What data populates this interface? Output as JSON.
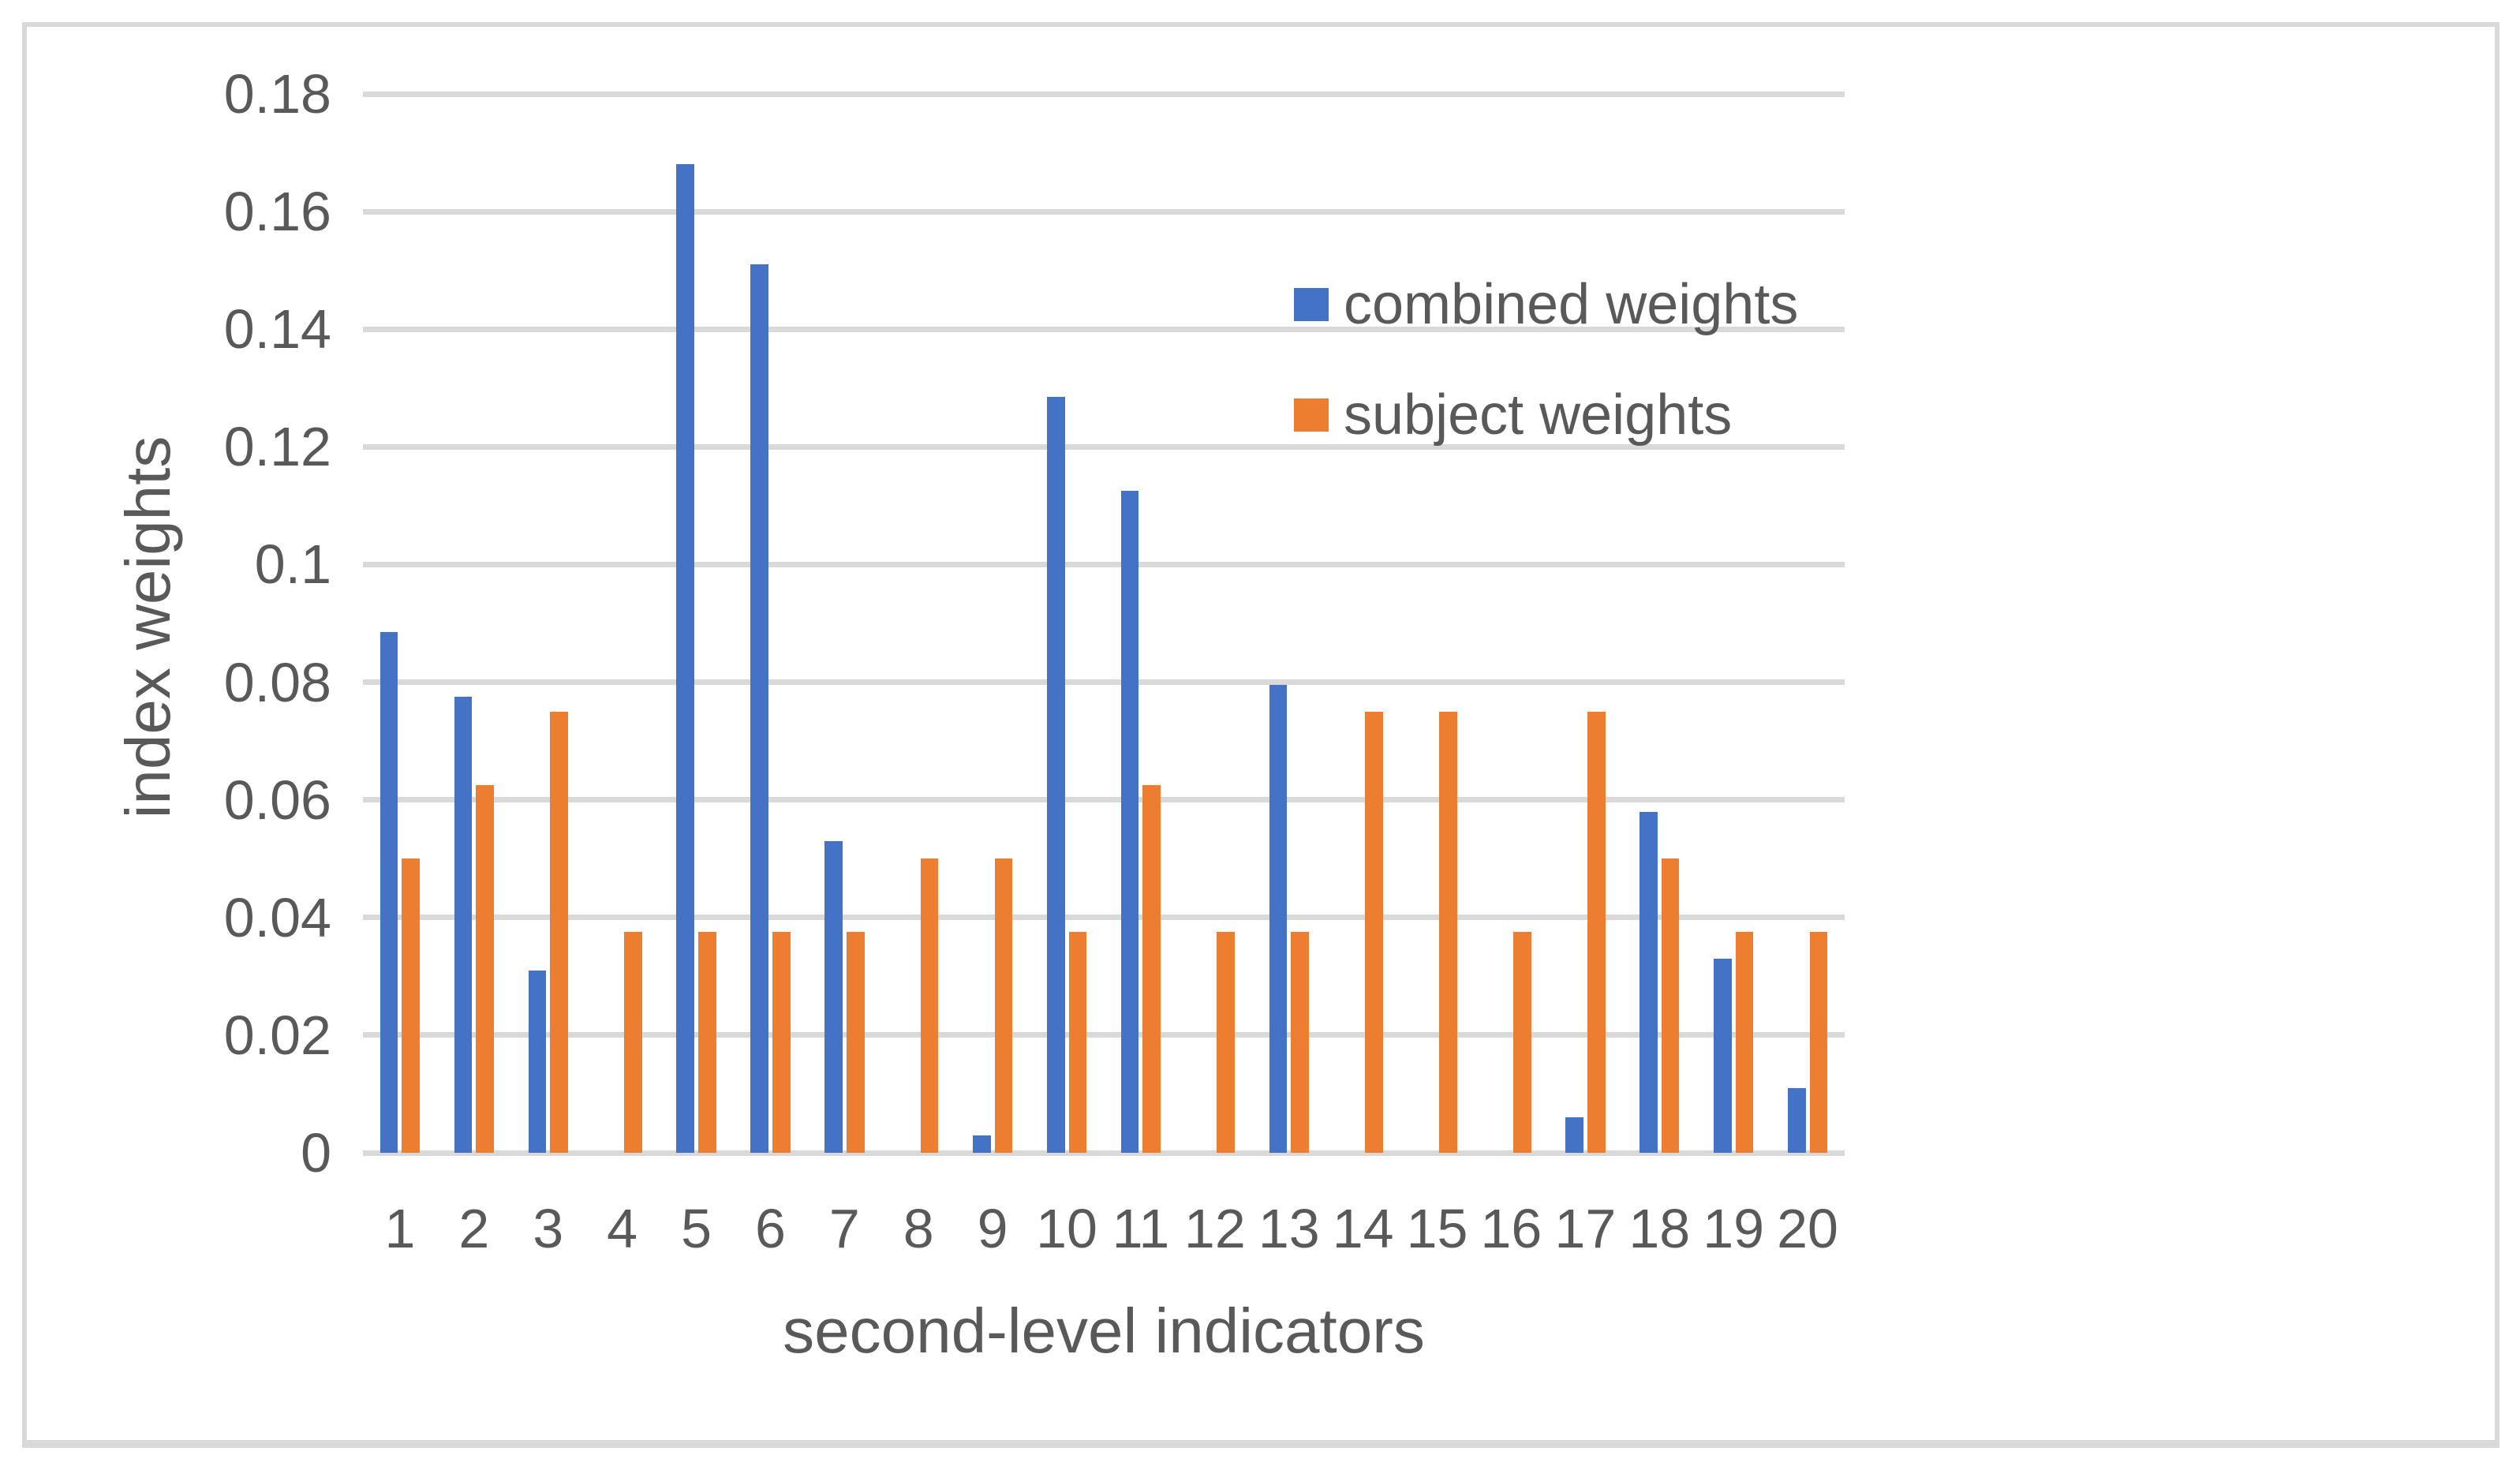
{
  "figure": {
    "y_axis_title": "index weights",
    "x_axis_title": "second-level indicators",
    "legend": {
      "combined_label": "combined weights",
      "subject_label": "subject weights"
    },
    "colors": {
      "combined": "#4472C4",
      "subject": "#ED7D31",
      "gridline": "#D9D9D9",
      "frame_border": "#D9D9D9",
      "text": "#595959",
      "background": "#FFFFFF"
    },
    "y_ticks": [
      {
        "label": "0",
        "value": 0
      },
      {
        "label": "0.02",
        "value": 0.02
      },
      {
        "label": "0.04",
        "value": 0.04
      },
      {
        "label": "0.06",
        "value": 0.06
      },
      {
        "label": "0.08",
        "value": 0.08
      },
      {
        "label": "0.1",
        "value": 0.1
      },
      {
        "label": "0.12",
        "value": 0.12
      },
      {
        "label": "0.14",
        "value": 0.14
      },
      {
        "label": "0.16",
        "value": 0.16
      },
      {
        "label": "0.18",
        "value": 0.18
      }
    ]
  },
  "chart_data": {
    "type": "bar",
    "title": "",
    "categories": [
      "1",
      "2",
      "3",
      "4",
      "5",
      "6",
      "7",
      "8",
      "9",
      "10",
      "11",
      "12",
      "13",
      "14",
      "15",
      "16",
      "17",
      "18",
      "19",
      "20"
    ],
    "series": [
      {
        "name": "combined weights",
        "color": "#4472C4",
        "values": [
          0.0885,
          0.0775,
          0.031,
          0,
          0.168,
          0.151,
          0.053,
          0,
          0.003,
          0.1285,
          0.1125,
          0,
          0.0795,
          0,
          0,
          0,
          0.006,
          0.058,
          0.033,
          0.011
        ]
      },
      {
        "name": "subject weights",
        "color": "#ED7D31",
        "values": [
          0.05,
          0.0625,
          0.075,
          0.0375,
          0.0375,
          0.0375,
          0.0375,
          0.05,
          0.05,
          0.0375,
          0.0625,
          0.0375,
          0.0375,
          0.075,
          0.075,
          0.0375,
          0.075,
          0.05,
          0.0375,
          0.0375
        ]
      }
    ],
    "xlabel": "second-level indicators",
    "ylabel": "index weights",
    "ylim": [
      0,
      0.18
    ],
    "ytick_step": 0.02,
    "grid": true,
    "legend_position": "inside-upper-right"
  }
}
